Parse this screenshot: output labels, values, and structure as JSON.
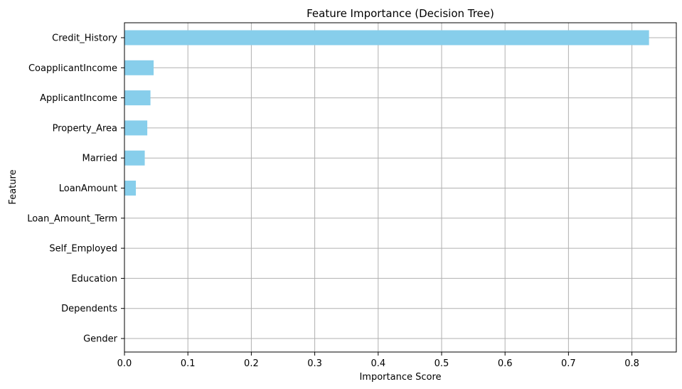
{
  "chart_data": {
    "type": "bar",
    "orientation": "horizontal",
    "title": "Feature Importance (Decision Tree)",
    "xlabel": "Importance Score",
    "ylabel": "Feature",
    "categories": [
      "Credit_History",
      "CoapplicantIncome",
      "ApplicantIncome",
      "Property_Area",
      "Married",
      "LoanAmount",
      "Loan_Amount_Term",
      "Self_Employed",
      "Education",
      "Dependents",
      "Gender"
    ],
    "values": [
      0.827,
      0.046,
      0.041,
      0.036,
      0.032,
      0.018,
      0.0,
      0.0,
      0.0,
      0.0,
      0.0
    ],
    "xlim": [
      0,
      0.87
    ],
    "xticks": [
      0.0,
      0.1,
      0.2,
      0.3,
      0.4,
      0.5,
      0.6,
      0.7,
      0.8
    ],
    "xtick_labels": [
      "0.0",
      "0.1",
      "0.2",
      "0.3",
      "0.4",
      "0.5",
      "0.6",
      "0.7",
      "0.8"
    ],
    "grid": true,
    "bar_color": "#87ceeb",
    "grid_color": "#b0b0b0"
  }
}
